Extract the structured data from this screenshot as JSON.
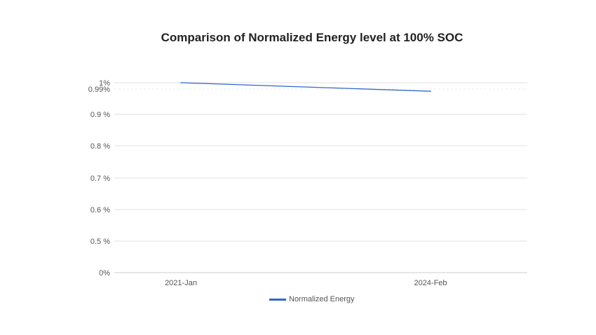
{
  "chart_data": {
    "type": "line",
    "title": "Comparison of Normalized Energy level at 100% SOC",
    "categories": [
      "2021-Jan",
      "2024-Feb"
    ],
    "series": [
      {
        "name": "Normalized Energy",
        "values": [
          1.0,
          0.982
        ],
        "color": "#3366cc"
      }
    ],
    "y_ticks": [
      {
        "value": 0,
        "label": "0%"
      },
      {
        "value": 0.5,
        "label": "0.5 %"
      },
      {
        "value": 0.6,
        "label": "0.6 %"
      },
      {
        "value": 0.7,
        "label": "0.7 %"
      },
      {
        "value": 0.8,
        "label": "0.8 %"
      },
      {
        "value": 0.9,
        "label": "0.9 %"
      },
      {
        "value": 0.99,
        "label": "0.99%"
      },
      {
        "value": 1.0,
        "label": "1%"
      }
    ],
    "xlabel": "",
    "ylabel": "",
    "grid": true,
    "legend_position": "bottom"
  }
}
